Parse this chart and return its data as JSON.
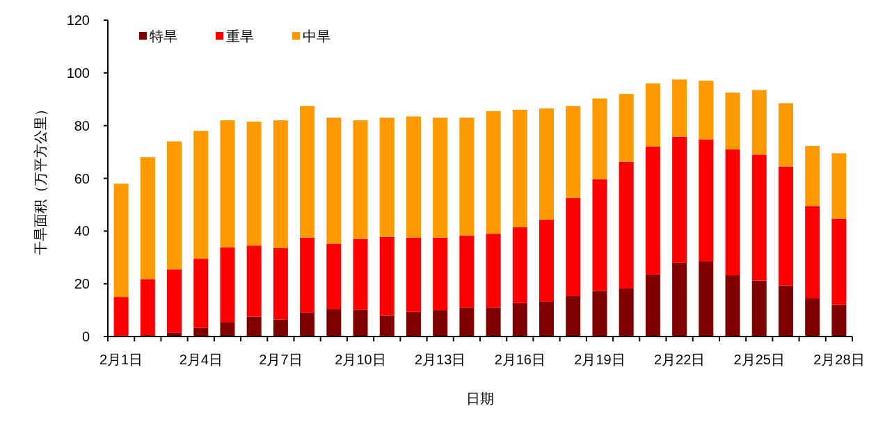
{
  "chart_data": {
    "type": "bar",
    "stacked": true,
    "xlabel": "日期",
    "ylabel": "干旱面积（万平方公里）",
    "legend": "top left",
    "categories": [
      "2月1日",
      null,
      null,
      "2月4日",
      null,
      null,
      "2月7日",
      null,
      null,
      "2月10日",
      null,
      null,
      "2月13日",
      null,
      null,
      "2月16日",
      null,
      null,
      "2月19日",
      null,
      null,
      "2月22日",
      null,
      null,
      "2月25日",
      null,
      null,
      "2月28日"
    ],
    "ylim": [
      0,
      120
    ],
    "yticks": [
      0,
      20,
      40,
      60,
      80,
      100,
      120
    ],
    "series": [
      {
        "name": "特旱",
        "color": "#800000",
        "values": [
          0,
          0.5,
          1.5,
          3.3,
          5.5,
          7.5,
          6.5,
          9,
          10.5,
          10.2,
          8,
          9.3,
          10,
          11,
          11,
          12.7,
          13.2,
          15.3,
          17.3,
          18.2,
          23.5,
          28,
          28.5,
          23.2,
          21.2,
          19.3,
          14.5,
          12
        ]
      },
      {
        "name": "重旱",
        "color": "#ff0000",
        "values": [
          15,
          21.3,
          24,
          26.2,
          28.3,
          27,
          27,
          28.5,
          24.7,
          26.8,
          29.8,
          28.2,
          27.5,
          27.3,
          28,
          28.8,
          31.1,
          37.2,
          42.4,
          48.1,
          48.5,
          47.8,
          46.3,
          47.8,
          47.8,
          45.2,
          35,
          32.7
        ]
      },
      {
        "name": "中旱",
        "color": "#ff9900",
        "values": [
          43,
          46.2,
          48.5,
          48.5,
          48.2,
          47,
          48.5,
          50,
          47.8,
          45,
          45.2,
          46,
          45.5,
          44.7,
          46.5,
          44.5,
          42.2,
          35,
          30.6,
          25.7,
          24,
          21.7,
          22.2,
          21.5,
          24.5,
          24,
          22.8,
          24.8
        ]
      }
    ]
  }
}
